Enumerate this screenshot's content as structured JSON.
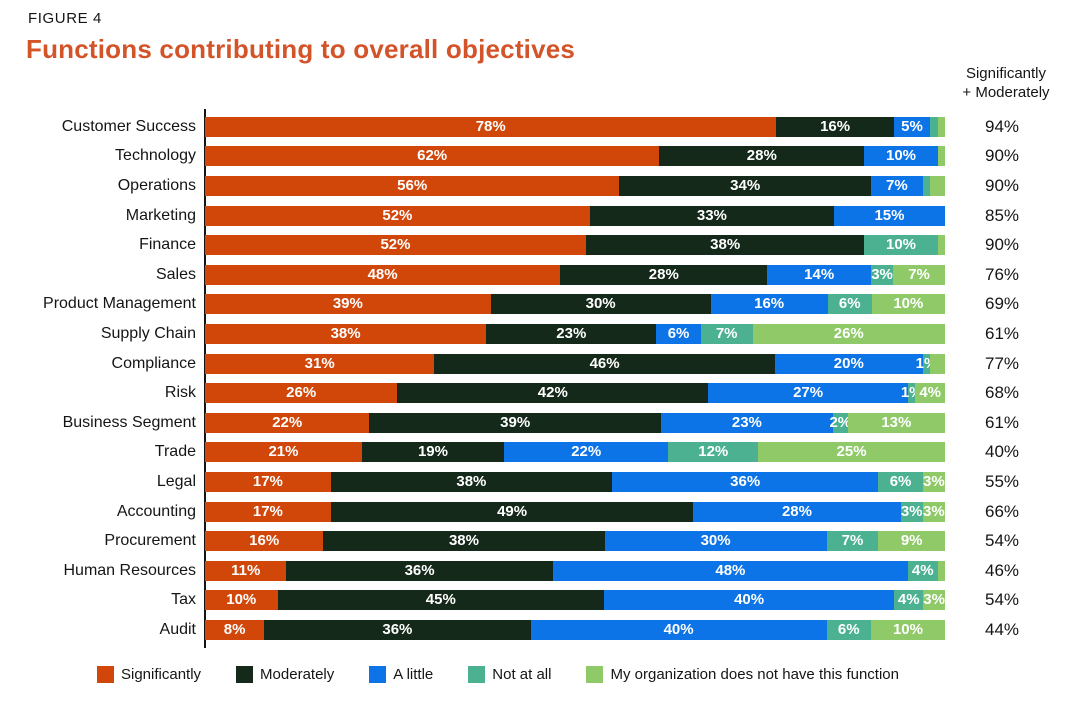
{
  "figure_label": "FIGURE 4",
  "title": "Functions contributing to overall objectives",
  "title_color": "#d4542a",
  "totals_header_line1": "Significantly",
  "totals_header_line2": "+ Moderately",
  "chart_data": {
    "type": "bar",
    "stacked": true,
    "orientation": "horizontal",
    "grid": false,
    "legend_position": "bottom",
    "x_range_percent": [
      0,
      100
    ],
    "legend": [
      {
        "key": "significantly",
        "label": "Significantly",
        "color": "#d1470a"
      },
      {
        "key": "moderately",
        "label": "Moderately",
        "color": "#14291a"
      },
      {
        "key": "a-little",
        "label": "A little",
        "color": "#0d74e7"
      },
      {
        "key": "not-at-all",
        "label": "Not at all",
        "color": "#4bb191"
      },
      {
        "key": "no-function",
        "label": "My organization does not have this function",
        "color": "#8fc968"
      }
    ],
    "rows": [
      {
        "label": "Customer Success",
        "total": "94%",
        "segments": [
          {
            "series": 0,
            "value": 78,
            "label": "78%"
          },
          {
            "series": 1,
            "value": 16,
            "label": "16%"
          },
          {
            "series": 2,
            "value": 5,
            "label": "5%"
          },
          {
            "series": 3,
            "value": 1,
            "label": ""
          },
          {
            "series": 4,
            "value": 1,
            "label": ""
          }
        ]
      },
      {
        "label": "Technology",
        "total": "90%",
        "segments": [
          {
            "series": 0,
            "value": 62,
            "label": "62%"
          },
          {
            "series": 1,
            "value": 28,
            "label": "28%"
          },
          {
            "series": 2,
            "value": 10,
            "label": "10%"
          },
          {
            "series": 4,
            "value": 1,
            "label": ""
          }
        ]
      },
      {
        "label": "Operations",
        "total": "90%",
        "segments": [
          {
            "series": 0,
            "value": 56,
            "label": "56%"
          },
          {
            "series": 1,
            "value": 34,
            "label": "34%"
          },
          {
            "series": 2,
            "value": 7,
            "label": "7%"
          },
          {
            "series": 3,
            "value": 1,
            "label": ""
          },
          {
            "series": 4,
            "value": 2,
            "label": ""
          }
        ]
      },
      {
        "label": "Marketing",
        "total": "85%",
        "segments": [
          {
            "series": 0,
            "value": 52,
            "label": "52%"
          },
          {
            "series": 1,
            "value": 33,
            "label": "33%"
          },
          {
            "series": 2,
            "value": 15,
            "label": "15%"
          }
        ]
      },
      {
        "label": "Finance",
        "total": "90%",
        "segments": [
          {
            "series": 0,
            "value": 52,
            "label": "52%"
          },
          {
            "series": 1,
            "value": 38,
            "label": "38%"
          },
          {
            "series": 3,
            "value": 10,
            "label": "10%"
          },
          {
            "series": 4,
            "value": 1,
            "label": ""
          }
        ]
      },
      {
        "label": "Sales",
        "total": "76%",
        "segments": [
          {
            "series": 0,
            "value": 48,
            "label": "48%"
          },
          {
            "series": 1,
            "value": 28,
            "label": "28%"
          },
          {
            "series": 2,
            "value": 14,
            "label": "14%"
          },
          {
            "series": 3,
            "value": 3,
            "label": "3%"
          },
          {
            "series": 4,
            "value": 7,
            "label": "7%"
          }
        ]
      },
      {
        "label": "Product Management",
        "total": "69%",
        "segments": [
          {
            "series": 0,
            "value": 39,
            "label": "39%"
          },
          {
            "series": 1,
            "value": 30,
            "label": "30%"
          },
          {
            "series": 2,
            "value": 16,
            "label": "16%"
          },
          {
            "series": 3,
            "value": 6,
            "label": "6%"
          },
          {
            "series": 4,
            "value": 10,
            "label": "10%"
          }
        ]
      },
      {
        "label": "Supply Chain",
        "total": "61%",
        "segments": [
          {
            "series": 0,
            "value": 38,
            "label": "38%"
          },
          {
            "series": 1,
            "value": 23,
            "label": "23%"
          },
          {
            "series": 2,
            "value": 6,
            "label": "6%"
          },
          {
            "series": 3,
            "value": 7,
            "label": "7%"
          },
          {
            "series": 4,
            "value": 26,
            "label": "26%"
          }
        ]
      },
      {
        "label": "Compliance",
        "total": "77%",
        "segments": [
          {
            "series": 0,
            "value": 31,
            "label": "31%"
          },
          {
            "series": 1,
            "value": 46,
            "label": "46%"
          },
          {
            "series": 2,
            "value": 20,
            "label": "20%"
          },
          {
            "series": 3,
            "value": 1,
            "label": "1%"
          },
          {
            "series": 4,
            "value": 2,
            "label": ""
          }
        ]
      },
      {
        "label": "Risk",
        "total": "68%",
        "segments": [
          {
            "series": 0,
            "value": 26,
            "label": "26%"
          },
          {
            "series": 1,
            "value": 42,
            "label": "42%"
          },
          {
            "series": 2,
            "value": 27,
            "label": "27%"
          },
          {
            "series": 3,
            "value": 1,
            "label": "1%"
          },
          {
            "series": 4,
            "value": 4,
            "label": "4%"
          }
        ]
      },
      {
        "label": "Business Segment",
        "total": "61%",
        "segments": [
          {
            "series": 0,
            "value": 22,
            "label": "22%"
          },
          {
            "series": 1,
            "value": 39,
            "label": "39%"
          },
          {
            "series": 2,
            "value": 23,
            "label": "23%"
          },
          {
            "series": 3,
            "value": 2,
            "label": "2%"
          },
          {
            "series": 4,
            "value": 13,
            "label": "13%"
          }
        ]
      },
      {
        "label": "Trade",
        "total": "40%",
        "segments": [
          {
            "series": 0,
            "value": 21,
            "label": "21%"
          },
          {
            "series": 1,
            "value": 19,
            "label": "19%"
          },
          {
            "series": 2,
            "value": 22,
            "label": "22%"
          },
          {
            "series": 3,
            "value": 12,
            "label": "12%"
          },
          {
            "series": 4,
            "value": 25,
            "label": "25%"
          }
        ]
      },
      {
        "label": "Legal",
        "total": "55%",
        "segments": [
          {
            "series": 0,
            "value": 17,
            "label": "17%"
          },
          {
            "series": 1,
            "value": 38,
            "label": "38%"
          },
          {
            "series": 2,
            "value": 36,
            "label": "36%"
          },
          {
            "series": 3,
            "value": 6,
            "label": "6%"
          },
          {
            "series": 4,
            "value": 3,
            "label": "3%"
          }
        ]
      },
      {
        "label": "Accounting",
        "total": "66%",
        "segments": [
          {
            "series": 0,
            "value": 17,
            "label": "17%"
          },
          {
            "series": 1,
            "value": 49,
            "label": "49%"
          },
          {
            "series": 2,
            "value": 28,
            "label": "28%"
          },
          {
            "series": 3,
            "value": 3,
            "label": "3%"
          },
          {
            "series": 4,
            "value": 3,
            "label": "3%"
          }
        ]
      },
      {
        "label": "Procurement",
        "total": "54%",
        "segments": [
          {
            "series": 0,
            "value": 16,
            "label": "16%"
          },
          {
            "series": 1,
            "value": 38,
            "label": "38%"
          },
          {
            "series": 2,
            "value": 30,
            "label": "30%"
          },
          {
            "series": 3,
            "value": 7,
            "label": "7%"
          },
          {
            "series": 4,
            "value": 9,
            "label": "9%"
          }
        ]
      },
      {
        "label": "Human Resources",
        "total": "46%",
        "segments": [
          {
            "series": 0,
            "value": 11,
            "label": "11%"
          },
          {
            "series": 1,
            "value": 36,
            "label": "36%"
          },
          {
            "series": 2,
            "value": 48,
            "label": "48%"
          },
          {
            "series": 3,
            "value": 4,
            "label": "4%"
          },
          {
            "series": 4,
            "value": 1,
            "label": ""
          }
        ]
      },
      {
        "label": "Tax",
        "total": "54%",
        "segments": [
          {
            "series": 0,
            "value": 10,
            "label": "10%"
          },
          {
            "series": 1,
            "value": 45,
            "label": "45%"
          },
          {
            "series": 2,
            "value": 40,
            "label": "40%"
          },
          {
            "series": 3,
            "value": 4,
            "label": "4%"
          },
          {
            "series": 4,
            "value": 3,
            "label": "3%"
          }
        ]
      },
      {
        "label": "Audit",
        "total": "44%",
        "segments": [
          {
            "series": 0,
            "value": 8,
            "label": "8%"
          },
          {
            "series": 1,
            "value": 36,
            "label": "36%"
          },
          {
            "series": 2,
            "value": 40,
            "label": "40%"
          },
          {
            "series": 3,
            "value": 6,
            "label": "6%"
          },
          {
            "series": 4,
            "value": 10,
            "label": "10%"
          }
        ]
      }
    ]
  }
}
